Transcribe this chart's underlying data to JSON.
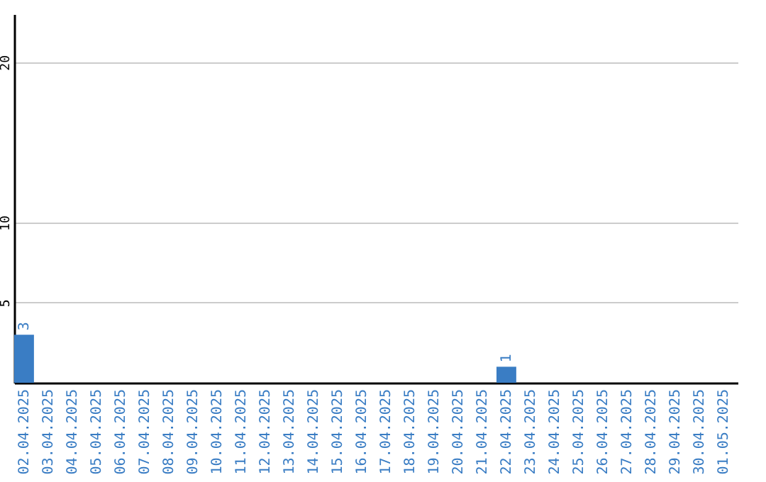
{
  "chart_data": {
    "type": "bar",
    "categories": [
      "02.04.2025",
      "03.04.2025",
      "04.04.2025",
      "05.04.2025",
      "06.04.2025",
      "07.04.2025",
      "08.04.2025",
      "09.04.2025",
      "10.04.2025",
      "11.04.2025",
      "12.04.2025",
      "13.04.2025",
      "14.04.2025",
      "15.04.2025",
      "16.04.2025",
      "17.04.2025",
      "18.04.2025",
      "19.04.2025",
      "20.04.2025",
      "21.04.2025",
      "22.04.2025",
      "23.04.2025",
      "24.04.2025",
      "25.04.2025",
      "26.04.2025",
      "27.04.2025",
      "28.04.2025",
      "29.04.2025",
      "30.04.2025",
      "01.05.2025"
    ],
    "values": [
      3,
      0,
      0,
      0,
      0,
      0,
      0,
      0,
      0,
      0,
      0,
      0,
      0,
      0,
      0,
      0,
      0,
      0,
      0,
      0,
      1,
      0,
      0,
      0,
      0,
      0,
      0,
      0,
      0,
      0
    ],
    "value_labels": [
      "3",
      null,
      null,
      null,
      null,
      null,
      null,
      null,
      null,
      null,
      null,
      null,
      null,
      null,
      null,
      null,
      null,
      null,
      null,
      null,
      "1",
      null,
      null,
      null,
      null,
      null,
      null,
      null,
      null,
      null
    ],
    "color": "#3a7dc4",
    "ylim": [
      0,
      23
    ],
    "yticks": [
      5,
      10,
      20
    ],
    "grid": "y"
  }
}
